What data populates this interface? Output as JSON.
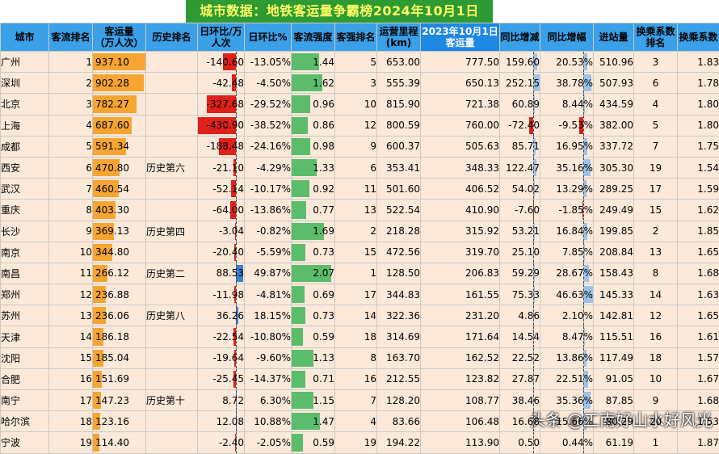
{
  "title": "城市数据：地铁客运量争霸榜2024年10月1日",
  "headers": [
    "城市",
    "客流排名",
    "客运量\n（万人次）",
    "历史排名",
    "日环比/万人次",
    "日环比%",
    "客流强度",
    "客强排名",
    "运营里程\n(km)",
    "2023年10月1日\n客运量",
    "同比增减",
    "同比增幅",
    "进站量",
    "换乘系数排名",
    "换乘系数"
  ],
  "rows": [
    {
      "city": "广州",
      "rank": "1",
      "volume": "937.10",
      "hist": "",
      "dod": "-140.60",
      "dodp": "-13.05%",
      "intensity": "1.44",
      "irank": "5",
      "km": "653.00",
      "y2023": "777.50",
      "yoy": "159.60",
      "yoyp": "20.53%",
      "entry": "510.96",
      "trank": "3",
      "tcoef": "1.83"
    },
    {
      "city": "深圳",
      "rank": "2",
      "volume": "902.28",
      "hist": "",
      "dod": "-42.48",
      "dodp": "-4.50%",
      "intensity": "1.62",
      "irank": "3",
      "km": "555.39",
      "y2023": "650.13",
      "yoy": "252.15",
      "yoyp": "38.78%",
      "entry": "507.93",
      "trank": "6",
      "tcoef": "1.78"
    },
    {
      "city": "北京",
      "rank": "3",
      "volume": "782.27",
      "hist": "",
      "dod": "-327.68",
      "dodp": "-29.52%",
      "intensity": "0.96",
      "irank": "10",
      "km": "815.90",
      "y2023": "721.38",
      "yoy": "60.89",
      "yoyp": "8.44%",
      "entry": "434.59",
      "trank": "4",
      "tcoef": "1.80"
    },
    {
      "city": "上海",
      "rank": "4",
      "volume": "687.60",
      "hist": "",
      "dod": "-430.90",
      "dodp": "-38.52%",
      "intensity": "0.86",
      "irank": "12",
      "km": "800.59",
      "y2023": "760.00",
      "yoy": "-72.40",
      "yoyp": "-9.53%",
      "entry": "382.00",
      "trank": "5",
      "tcoef": "1.80"
    },
    {
      "city": "成都",
      "rank": "5",
      "volume": "591.34",
      "hist": "",
      "dod": "-188.48",
      "dodp": "-24.16%",
      "intensity": "0.98",
      "irank": "9",
      "km": "600.37",
      "y2023": "505.63",
      "yoy": "85.71",
      "yoyp": "16.95%",
      "entry": "337.72",
      "trank": "7",
      "tcoef": "1.75"
    },
    {
      "city": "西安",
      "rank": "6",
      "volume": "470.80",
      "hist": "历史第六",
      "dod": "-21.10",
      "dodp": "-4.29%",
      "intensity": "1.33",
      "irank": "6",
      "km": "353.41",
      "y2023": "348.33",
      "yoy": "122.47",
      "yoyp": "35.16%",
      "entry": "305.30",
      "trank": "19",
      "tcoef": "1.54"
    },
    {
      "city": "武汉",
      "rank": "7",
      "volume": "460.54",
      "hist": "",
      "dod": "-52.14",
      "dodp": "-10.17%",
      "intensity": "0.92",
      "irank": "11",
      "km": "501.60",
      "y2023": "406.52",
      "yoy": "54.02",
      "yoyp": "13.29%",
      "entry": "289.25",
      "trank": "17",
      "tcoef": "1.59"
    },
    {
      "city": "重庆",
      "rank": "8",
      "volume": "403.30",
      "hist": "",
      "dod": "-64.00",
      "dodp": "-13.86%",
      "intensity": "0.77",
      "irank": "13",
      "km": "522.54",
      "y2023": "410.90",
      "yoy": "-7.60",
      "yoyp": "-1.85%",
      "entry": "249.49",
      "trank": "15",
      "tcoef": "1.62"
    },
    {
      "city": "长沙",
      "rank": "9",
      "volume": "369.13",
      "hist": "历史第四",
      "dod": "-3.04",
      "dodp": "-0.82%",
      "intensity": "1.69",
      "irank": "2",
      "km": "218.28",
      "y2023": "315.92",
      "yoy": "53.21",
      "yoyp": "16.84%",
      "entry": "199.85",
      "trank": "2",
      "tcoef": "1.85"
    },
    {
      "city": "南京",
      "rank": "10",
      "volume": "344.80",
      "hist": "",
      "dod": "-20.40",
      "dodp": "-5.59%",
      "intensity": "0.73",
      "irank": "15",
      "km": "472.56",
      "y2023": "319.70",
      "yoy": "25.10",
      "yoyp": "7.85%",
      "entry": "208.84",
      "trank": "13",
      "tcoef": "1.65"
    },
    {
      "city": "南昌",
      "rank": "11",
      "volume": "266.12",
      "hist": "历史第二",
      "dod": "88.53",
      "dodp": "49.87%",
      "intensity": "2.07",
      "irank": "1",
      "km": "128.50",
      "y2023": "206.83",
      "yoy": "59.29",
      "yoyp": "28.67%",
      "entry": "158.43",
      "trank": "8",
      "tcoef": "1.68"
    },
    {
      "city": "郑州",
      "rank": "12",
      "volume": "236.88",
      "hist": "",
      "dod": "-11.98",
      "dodp": "-4.81%",
      "intensity": "0.69",
      "irank": "17",
      "km": "344.83",
      "y2023": "161.55",
      "yoy": "75.33",
      "yoyp": "46.63%",
      "entry": "145.33",
      "trank": "14",
      "tcoef": "1.63"
    },
    {
      "city": "苏州",
      "rank": "13",
      "volume": "236.06",
      "hist": "历史第八",
      "dod": "36.26",
      "dodp": "18.15%",
      "intensity": "0.73",
      "irank": "14",
      "km": "322.36",
      "y2023": "231.20",
      "yoy": "4.86",
      "yoyp": "2.10%",
      "entry": "142.81",
      "trank": "12",
      "tcoef": "1.65"
    },
    {
      "city": "天津",
      "rank": "14",
      "volume": "186.18",
      "hist": "",
      "dod": "-22.54",
      "dodp": "-10.80%",
      "intensity": "0.59",
      "irank": "18",
      "km": "314.69",
      "y2023": "171.64",
      "yoy": "14.54",
      "yoyp": "8.47%",
      "entry": "115.51",
      "trank": "16",
      "tcoef": "1.61"
    },
    {
      "city": "沈阳",
      "rank": "15",
      "volume": "185.04",
      "hist": "",
      "dod": "-19.64",
      "dodp": "-9.60%",
      "intensity": "1.13",
      "irank": "8",
      "km": "163.70",
      "y2023": "162.52",
      "yoy": "22.52",
      "yoyp": "13.86%",
      "entry": "117.49",
      "trank": "18",
      "tcoef": "1.57"
    },
    {
      "city": "合肥",
      "rank": "16",
      "volume": "151.69",
      "hist": "",
      "dod": "-25.45",
      "dodp": "-14.37%",
      "intensity": "0.71",
      "irank": "16",
      "km": "212.55",
      "y2023": "123.82",
      "yoy": "27.87",
      "yoyp": "22.51%",
      "entry": "91.05",
      "trank": "10",
      "tcoef": "1.67"
    },
    {
      "city": "南宁",
      "rank": "17",
      "volume": "147.23",
      "hist": "历史第十",
      "dod": "8.72",
      "dodp": "6.30%",
      "intensity": "1.15",
      "irank": "7",
      "km": "128.20",
      "y2023": "108.77",
      "yoy": "38.46",
      "yoyp": "35.36%",
      "entry": "87.85",
      "trank": "9",
      "tcoef": "1.68"
    },
    {
      "city": "哈尔滨",
      "rank": "18",
      "volume": "123.16",
      "hist": "",
      "dod": "12.08",
      "dodp": "10.88%",
      "intensity": "1.47",
      "irank": "4",
      "km": "83.66",
      "y2023": "106.48",
      "yoy": "16.68",
      "yoyp": "15.66%",
      "entry": "80.29",
      "trank": "20",
      "tcoef": "1.53"
    },
    {
      "city": "宁波",
      "rank": "19",
      "volume": "114.40",
      "hist": "",
      "dod": "-2.40",
      "dodp": "-2.05%",
      "intensity": "0.59",
      "irank": "19",
      "km": "194.22",
      "y2023": "113.90",
      "yoy": "0.50",
      "yoyp": "0.44%",
      "entry": "61.19",
      "trank": "1",
      "tcoef": "1.87"
    }
  ],
  "watermark": "头条 @工南好山水好风光",
  "colors": {
    "title_bg": "#2e9a33",
    "title_fg": "#ffff66",
    "header_bg": "#3aa0e8",
    "cell_bg": "#fde9d9",
    "orange": "#f7a531",
    "red": "#e0201b",
    "blue": "#3a7fd1",
    "green": "#5bbd6b"
  }
}
